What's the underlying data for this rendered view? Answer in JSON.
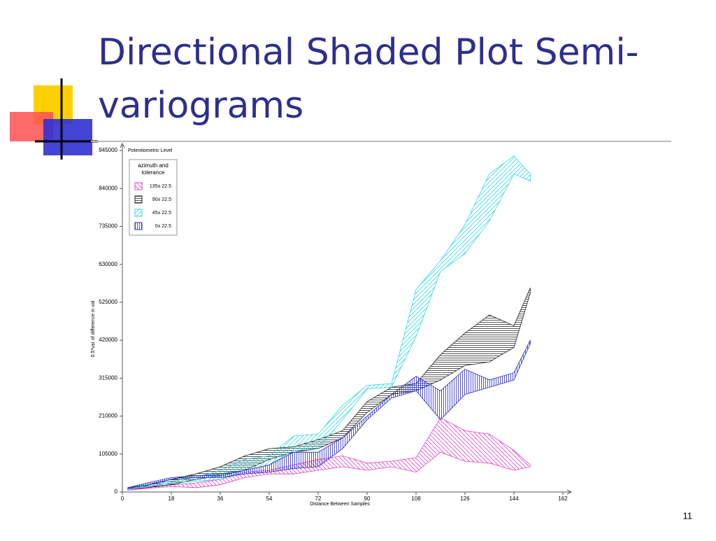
{
  "title_lines": [
    "Directional Shaded Plot Semi-",
    "variograms"
  ],
  "page_number": "11",
  "chart_data": {
    "type": "band",
    "title": "Potentiometric Level",
    "xlabel": "Distance Between Samples",
    "ylabel": "0.5*var of difference in val",
    "legend_title": "azimuth and tolerance",
    "legend": "upper-left",
    "xlim": [
      0,
      162
    ],
    "xticks": [
      0,
      18,
      36,
      54,
      72,
      90,
      108,
      126,
      144,
      162
    ],
    "ylim": [
      0,
      945000
    ],
    "yticks": [
      0,
      105000,
      210000,
      315000,
      420000,
      525000,
      630000,
      735000,
      840000,
      945000
    ],
    "x": [
      2,
      9,
      18,
      27,
      36,
      45,
      54,
      63,
      72,
      81,
      90,
      99,
      108,
      117,
      126,
      135,
      144,
      150
    ],
    "series": [
      {
        "name": "135± 22.5",
        "color": "#e040c8",
        "hatch": "backslash",
        "upper": [
          8000,
          15000,
          20000,
          25000,
          35000,
          55000,
          60000,
          75000,
          90000,
          100000,
          80000,
          85000,
          95000,
          205000,
          170000,
          160000,
          115000,
          75000
        ],
        "lower": [
          5000,
          10000,
          15000,
          12000,
          20000,
          40000,
          50000,
          50000,
          60000,
          70000,
          60000,
          70000,
          55000,
          110000,
          85000,
          80000,
          60000,
          70000
        ]
      },
      {
        "name": "90± 22.5",
        "color": "#202020",
        "hatch": "horizontal",
        "upper": [
          12000,
          20000,
          35000,
          50000,
          70000,
          100000,
          120000,
          125000,
          145000,
          170000,
          250000,
          290000,
          300000,
          380000,
          440000,
          490000,
          460000,
          565000
        ],
        "lower": [
          8000,
          12000,
          20000,
          35000,
          45000,
          60000,
          90000,
          110000,
          120000,
          150000,
          220000,
          270000,
          280000,
          310000,
          350000,
          360000,
          400000,
          550000
        ]
      },
      {
        "name": "45± 22.5",
        "color": "#30d8e0",
        "hatch": "slash",
        "upper": [
          10000,
          20000,
          30000,
          40000,
          60000,
          90000,
          100000,
          155000,
          160000,
          240000,
          295000,
          300000,
          560000,
          640000,
          740000,
          880000,
          930000,
          880000
        ],
        "lower": [
          8000,
          15000,
          25000,
          30000,
          35000,
          60000,
          75000,
          115000,
          120000,
          200000,
          285000,
          290000,
          430000,
          610000,
          660000,
          750000,
          880000,
          860000
        ]
      },
      {
        "name": "0± 22.5",
        "color": "#2828c8",
        "hatch": "vertical",
        "upper": [
          12000,
          25000,
          40000,
          45000,
          50000,
          60000,
          75000,
          110000,
          110000,
          150000,
          210000,
          270000,
          320000,
          280000,
          340000,
          310000,
          330000,
          420000
        ],
        "lower": [
          10000,
          18000,
          35000,
          40000,
          40000,
          50000,
          55000,
          65000,
          70000,
          120000,
          200000,
          260000,
          280000,
          200000,
          270000,
          290000,
          310000,
          410000
        ]
      }
    ]
  }
}
